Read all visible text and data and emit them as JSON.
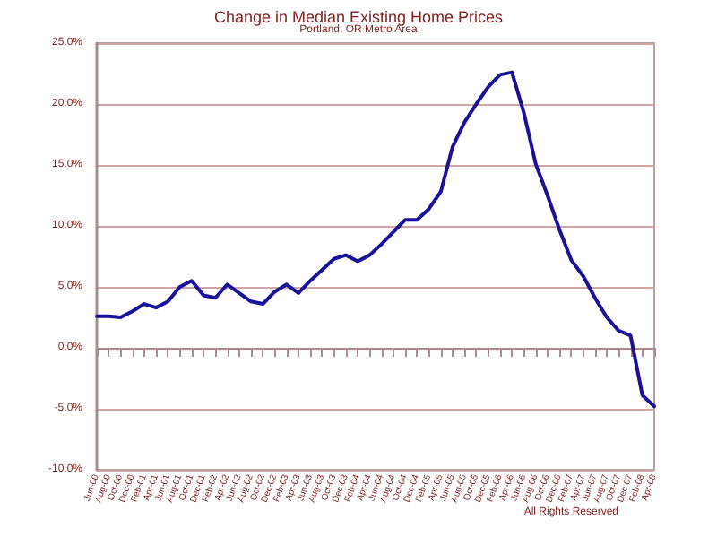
{
  "chart_data": {
    "type": "line",
    "title": "Change in Median Existing Home Prices",
    "subtitle": "Portland, OR Metro Area",
    "categories": [
      "Jun-00",
      "Aug-00",
      "Oct-00",
      "Dec-00",
      "Feb-01",
      "Apr-01",
      "Jun-01",
      "Aug-01",
      "Oct-01",
      "Dec-01",
      "Feb-02",
      "Apr-02",
      "Jun-02",
      "Aug-02",
      "Oct-02",
      "Dec-02",
      "Feb-03",
      "Apr-03",
      "Jun-03",
      "Aug-03",
      "Oct-03",
      "Dec-03",
      "Feb-04",
      "Apr-04",
      "Jun-04",
      "Aug-04",
      "Oct-04",
      "Dec-04",
      "Feb-05",
      "Apr-05",
      "Jun-05",
      "Aug-05",
      "Oct-05",
      "Dec-05",
      "Feb-06",
      "Apr-06",
      "Jun-06",
      "Aug-06",
      "Oct-06",
      "Dec-06",
      "Feb-07",
      "Apr-07",
      "Jun-07",
      "Aug-07",
      "Oct-07",
      "Dec-07",
      "Feb-08",
      "Apr-08"
    ],
    "series": [
      {
        "color": "#1a1299",
        "values": [
          2.6,
          2.6,
          2.5,
          3.0,
          3.6,
          3.3,
          3.8,
          5.0,
          5.5,
          4.3,
          4.1,
          5.2,
          4.5,
          3.8,
          3.6,
          4.6,
          5.2,
          4.5,
          5.5,
          6.4,
          7.3,
          7.6,
          7.1,
          7.6,
          8.5,
          9.5,
          10.5,
          10.5,
          11.4,
          12.8,
          16.5,
          18.5,
          20.0,
          21.4,
          22.4,
          22.6,
          19.3,
          15.1,
          12.5,
          9.7,
          7.2,
          5.9,
          4.1,
          2.5,
          1.4,
          1.0,
          -3.9,
          -4.8
        ]
      }
    ],
    "ylim": [
      -10,
      25
    ],
    "yticks": [
      {
        "value": -10,
        "label": "-10.0%"
      },
      {
        "value": -5,
        "label": "-5.0%"
      },
      {
        "value": 0,
        "label": "0.0%"
      },
      {
        "value": 5,
        "label": "5.0%"
      },
      {
        "value": 10,
        "label": "10.0%"
      },
      {
        "value": 15,
        "label": "15.0%"
      },
      {
        "value": 20,
        "label": "20.0%"
      },
      {
        "value": 25,
        "label": "25.0%"
      }
    ],
    "grid": "y",
    "marker": "none",
    "line_style": "solid",
    "annotations": [
      "All Rights Reserved"
    ]
  }
}
